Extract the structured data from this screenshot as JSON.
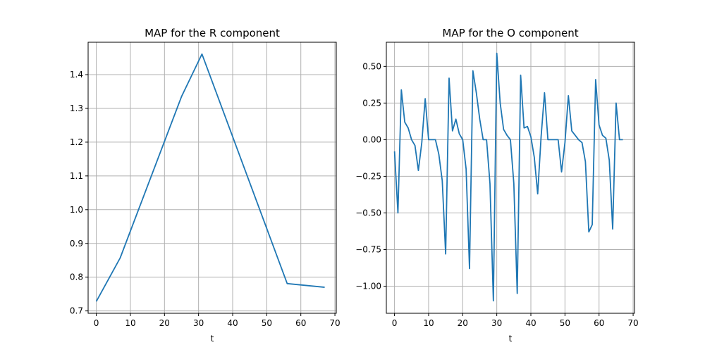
{
  "chart_data": [
    {
      "type": "line",
      "title": "MAP for the R component",
      "xlabel": "t",
      "ylabel": "",
      "xlim": [
        -2.4,
        70.4
      ],
      "ylim": [
        0.693,
        1.496
      ],
      "xticks": [
        0,
        10,
        20,
        30,
        40,
        50,
        60,
        70
      ],
      "yticks": [
        0.7,
        0.8,
        0.9,
        1.0,
        1.1,
        1.2,
        1.3,
        1.4
      ],
      "xtick_labels": [
        "0",
        "10",
        "20",
        "30",
        "40",
        "50",
        "60",
        "70"
      ],
      "ytick_labels": [
        "0.7",
        "0.8",
        "0.9",
        "1.0",
        "1.1",
        "1.2",
        "1.3",
        "1.4"
      ],
      "grid": true,
      "color": "#1f77b4",
      "x": [
        0,
        7,
        25,
        31,
        56,
        67
      ],
      "y": [
        0.728,
        0.857,
        1.335,
        1.461,
        0.781,
        0.77
      ]
    },
    {
      "type": "line",
      "title": "MAP for the O component",
      "xlabel": "t",
      "ylabel": "",
      "xlim": [
        -2.4,
        70.4
      ],
      "ylim": [
        -1.185,
        0.665
      ],
      "xticks": [
        0,
        10,
        20,
        30,
        40,
        50,
        60,
        70
      ],
      "yticks": [
        0.5,
        0.25,
        0.0,
        -0.25,
        -0.5,
        -0.75,
        -1.0
      ],
      "xtick_labels": [
        "0",
        "10",
        "20",
        "30",
        "40",
        "50",
        "60",
        "70"
      ],
      "ytick_labels": [
        "0.50",
        "0.25",
        "0.00",
        "−0.25",
        "−0.50",
        "−0.75",
        "−1.00"
      ],
      "grid": true,
      "color": "#1f77b4",
      "x": [
        0,
        1,
        2,
        3,
        4,
        5,
        6,
        7,
        8,
        9,
        10,
        11,
        12,
        13,
        14,
        15,
        16,
        17,
        18,
        19,
        20,
        21,
        22,
        23,
        24,
        25,
        26,
        27,
        28,
        29,
        30,
        31,
        32,
        33,
        34,
        35,
        36,
        37,
        38,
        39,
        40,
        41,
        42,
        43,
        44,
        45,
        46,
        47,
        48,
        49,
        50,
        51,
        52,
        53,
        54,
        55,
        56,
        57,
        58,
        59,
        60,
        61,
        62,
        63,
        64,
        65,
        66,
        67
      ],
      "y": [
        -0.08,
        -0.5,
        0.34,
        0.12,
        0.08,
        0.0,
        -0.04,
        -0.21,
        -0.02,
        0.28,
        0.0,
        0.0,
        0.0,
        -0.1,
        -0.28,
        -0.78,
        0.42,
        0.06,
        0.14,
        0.04,
        0.0,
        -0.2,
        -0.88,
        0.47,
        0.32,
        0.14,
        0.0,
        0.0,
        -0.3,
        -1.1,
        0.59,
        0.25,
        0.07,
        0.03,
        0.0,
        -0.3,
        -1.05,
        0.44,
        0.08,
        0.09,
        0.02,
        -0.12,
        -0.37,
        0.02,
        0.32,
        0.0,
        0.0,
        0.0,
        0.0,
        -0.22,
        -0.02,
        0.3,
        0.06,
        0.03,
        0.0,
        -0.02,
        -0.15,
        -0.63,
        -0.58,
        0.41,
        0.1,
        0.03,
        0.01,
        -0.14,
        -0.61,
        0.25,
        0.0,
        0.0
      ]
    }
  ]
}
